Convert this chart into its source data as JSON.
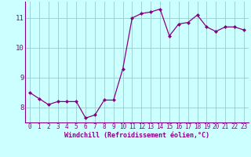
{
  "x": [
    0,
    1,
    2,
    3,
    4,
    5,
    6,
    7,
    8,
    9,
    10,
    11,
    12,
    13,
    14,
    15,
    16,
    17,
    18,
    19,
    20,
    21,
    22,
    23
  ],
  "y": [
    8.5,
    8.3,
    8.1,
    8.2,
    8.2,
    8.2,
    7.65,
    7.75,
    8.25,
    8.25,
    9.3,
    11.0,
    11.15,
    11.2,
    11.3,
    10.4,
    10.8,
    10.85,
    11.1,
    10.7,
    10.55,
    10.7,
    10.7,
    10.6
  ],
  "line_color": "#880088",
  "marker": "D",
  "markersize": 2.0,
  "linewidth": 0.9,
  "background_color": "#ccffff",
  "grid_color": "#99cccc",
  "xlabel": "Windchill (Refroidissement éolien,°C)",
  "xlabel_color": "#880088",
  "tick_color": "#880088",
  "ylim": [
    7.5,
    11.55
  ],
  "yticks": [
    8,
    9,
    10,
    11
  ],
  "xlim": [
    -0.5,
    23.5
  ],
  "xticks": [
    0,
    1,
    2,
    3,
    4,
    5,
    6,
    7,
    8,
    9,
    10,
    11,
    12,
    13,
    14,
    15,
    16,
    17,
    18,
    19,
    20,
    21,
    22,
    23
  ],
  "tick_fontsize": 5.5,
  "ytick_fontsize": 6.5,
  "xlabel_fontsize": 6.0
}
